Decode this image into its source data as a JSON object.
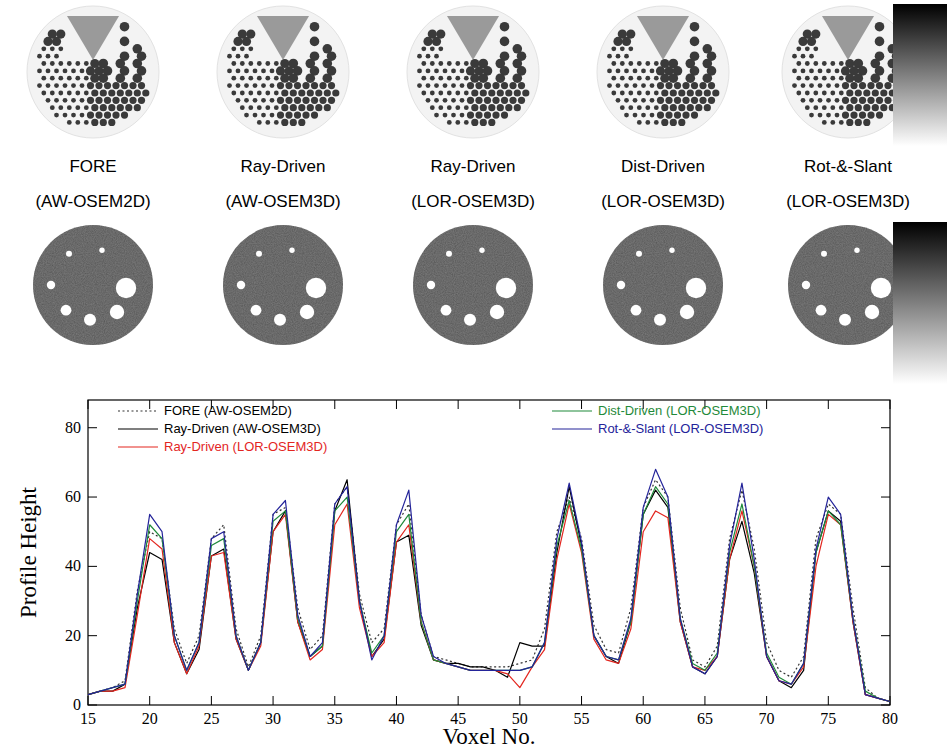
{
  "chart_data": {
    "type": "line",
    "x_label": "Voxel No.",
    "y_label": "Profile Height",
    "x": [
      15,
      16,
      17,
      18,
      19,
      20,
      21,
      22,
      23,
      24,
      25,
      26,
      27,
      28,
      29,
      30,
      31,
      32,
      33,
      34,
      35,
      36,
      37,
      38,
      39,
      40,
      41,
      42,
      43,
      44,
      45,
      46,
      47,
      48,
      49,
      50,
      51,
      52,
      53,
      54,
      55,
      56,
      57,
      58,
      59,
      60,
      61,
      62,
      63,
      64,
      65,
      66,
      67,
      68,
      69,
      70,
      71,
      72,
      73,
      74,
      75,
      76,
      77,
      78,
      79,
      80
    ],
    "series": [
      {
        "name": "FORE (AW-OSEM2D)",
        "color": "#333333",
        "line_style": "dotted",
        "values": [
          3,
          4,
          5,
          7,
          33,
          50,
          48,
          22,
          12,
          20,
          48,
          52,
          22,
          11,
          20,
          55,
          57,
          28,
          16,
          20,
          58,
          63,
          32,
          18,
          22,
          52,
          58,
          26,
          14,
          13,
          12,
          11,
          11,
          11,
          11,
          12,
          13,
          22,
          50,
          60,
          48,
          23,
          16,
          15,
          28,
          57,
          65,
          60,
          28,
          13,
          11,
          17,
          48,
          62,
          45,
          18,
          10,
          8,
          14,
          48,
          58,
          55,
          28,
          5,
          2,
          1
        ]
      },
      {
        "name": "Ray-Driven (AW-OSEM3D)",
        "color": "#000000",
        "line_style": "solid",
        "values": [
          3,
          4,
          4,
          6,
          28,
          44,
          42,
          18,
          9,
          16,
          43,
          45,
          19,
          10,
          18,
          50,
          56,
          24,
          14,
          17,
          56,
          65,
          30,
          14,
          19,
          47,
          49,
          23,
          13,
          12,
          12,
          11,
          11,
          10,
          8,
          18,
          17,
          17,
          44,
          63,
          46,
          20,
          14,
          12,
          24,
          55,
          62,
          57,
          24,
          11,
          9,
          14,
          42,
          53,
          38,
          14,
          7,
          5,
          10,
          44,
          56,
          53,
          24,
          3,
          2,
          1
        ]
      },
      {
        "name": "Ray-Driven (LOR-OSEM3D)",
        "color": "#e3261f",
        "line_style": "solid",
        "values": [
          3,
          4,
          4,
          5,
          26,
          48,
          45,
          18,
          9,
          17,
          43,
          44,
          19,
          10,
          17,
          50,
          55,
          24,
          13,
          16,
          52,
          58,
          28,
          14,
          18,
          47,
          52,
          24,
          13,
          12,
          11,
          10,
          10,
          10,
          9,
          5,
          11,
          16,
          42,
          58,
          44,
          19,
          13,
          12,
          22,
          50,
          56,
          54,
          24,
          11,
          10,
          14,
          42,
          56,
          40,
          14,
          7,
          6,
          11,
          40,
          55,
          52,
          24,
          3,
          2,
          1
        ]
      },
      {
        "name": "Dist-Driven (LOR-OSEM3D)",
        "color": "#1f8a3a",
        "line_style": "solid",
        "values": [
          3,
          4,
          5,
          6,
          30,
          52,
          48,
          20,
          10,
          18,
          46,
          48,
          20,
          10,
          18,
          53,
          56,
          25,
          14,
          17,
          56,
          60,
          30,
          15,
          20,
          50,
          55,
          24,
          13,
          12,
          11,
          10,
          10,
          10,
          10,
          10,
          11,
          18,
          46,
          59,
          45,
          20,
          14,
          13,
          24,
          55,
          63,
          58,
          25,
          12,
          10,
          15,
          44,
          58,
          40,
          15,
          8,
          6,
          12,
          44,
          56,
          52,
          25,
          4,
          2,
          1
        ]
      },
      {
        "name": "Rot-&-Slant (LOR-OSEM3D)",
        "color": "#24249a",
        "line_style": "solid",
        "values": [
          3,
          4,
          5,
          6,
          32,
          55,
          50,
          20,
          10,
          18,
          48,
          50,
          20,
          10,
          18,
          55,
          59,
          26,
          14,
          18,
          58,
          63,
          30,
          13,
          20,
          52,
          62,
          26,
          14,
          12,
          11,
          10,
          10,
          10,
          10,
          10,
          11,
          18,
          48,
          64,
          47,
          20,
          14,
          13,
          25,
          57,
          68,
          60,
          25,
          11,
          9,
          14,
          46,
          64,
          42,
          14,
          7,
          6,
          12,
          45,
          60,
          55,
          25,
          3,
          2,
          1
        ]
      }
    ],
    "xlim": [
      15,
      80
    ],
    "xticks": [
      15,
      20,
      25,
      30,
      35,
      40,
      45,
      50,
      55,
      60,
      65,
      70,
      75,
      80
    ],
    "ylim": [
      0,
      88
    ],
    "yticks": [
      0,
      20,
      40,
      60,
      80
    ],
    "grid": false,
    "legend": "top"
  },
  "panels": [
    {
      "label": "FORE",
      "sublabel": "(AW-OSEM2D)"
    },
    {
      "label": "Ray-Driven",
      "sublabel": "(AW-OSEM3D)"
    },
    {
      "label": "Ray-Driven",
      "sublabel": "(LOR-OSEM3D)"
    },
    {
      "label": "Dist-Driven",
      "sublabel": "(LOR-OSEM3D)"
    },
    {
      "label": "Rot-&-Slant",
      "sublabel": "(LOR-OSEM3D)"
    }
  ]
}
